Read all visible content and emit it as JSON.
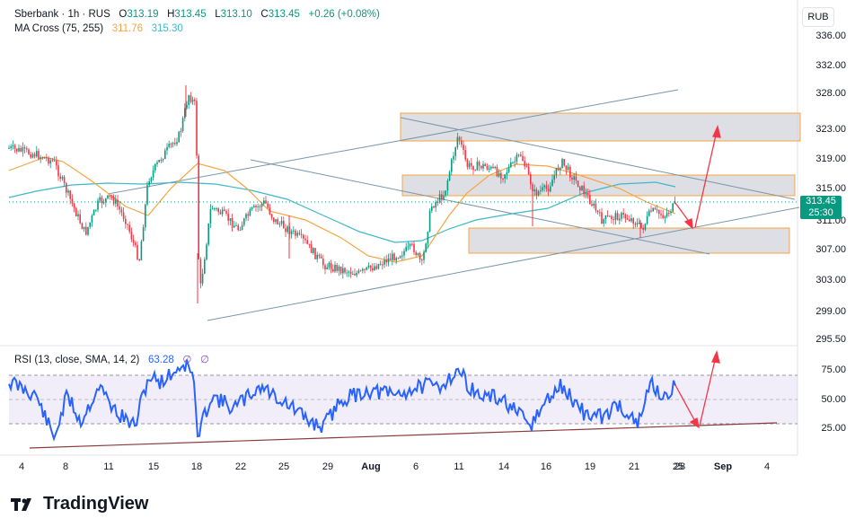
{
  "header": {
    "symbol": "Sberbank · 1h · RUS",
    "open_label": "O",
    "open": "313.19",
    "high_label": "H",
    "high": "313.45",
    "low_label": "L",
    "low": "313.10",
    "close_label": "C",
    "close": "313.45",
    "change": "+0.26 (+0.08%)",
    "ma_label": "MA Cross (75, 255)",
    "ma_fast": "311.76",
    "ma_slow": "315.30",
    "rsi_label": "RSI (13, close, SMA, 14, 2)",
    "rsi_value": "63.28",
    "rsi_ma_value": "∅",
    "rsi_extra": "∅"
  },
  "currency": "RUB",
  "price_tag": {
    "price": "313.45",
    "countdown": "25:30"
  },
  "y_axis_price": [
    "336.00",
    "332.00",
    "328.00",
    "323.00",
    "319.00",
    "315.00",
    "311.00",
    "307.00",
    "303.00",
    "299.00",
    "295.50"
  ],
  "y_axis_rsi": [
    "75.00",
    "50.00",
    "25.00"
  ],
  "x_axis": [
    {
      "label": "4",
      "bold": false
    },
    {
      "label": "8",
      "bold": false
    },
    {
      "label": "11",
      "bold": false
    },
    {
      "label": "15",
      "bold": false
    },
    {
      "label": "18",
      "bold": false
    },
    {
      "label": "22",
      "bold": false
    },
    {
      "label": "25",
      "bold": false
    },
    {
      "label": "29",
      "bold": false
    },
    {
      "label": "Aug",
      "bold": true
    },
    {
      "label": "6",
      "bold": false
    },
    {
      "label": "11",
      "bold": false
    },
    {
      "label": "14",
      "bold": false
    },
    {
      "label": "16",
      "bold": false
    },
    {
      "label": "19",
      "bold": false
    },
    {
      "label": "21",
      "bold": false
    },
    {
      "label": "25",
      "bold": false
    },
    {
      "label": "28",
      "bold": false
    },
    {
      "label": "Sep",
      "bold": true
    },
    {
      "label": "4",
      "bold": false
    }
  ],
  "brand": "TradingView",
  "colors": {
    "up": "#089981",
    "down": "#f23645",
    "ma_fast": "#f7a440",
    "ma_slow": "#3fb8c8",
    "rsi": "#2962ff",
    "zone_fill": "#d1d4dc",
    "zone_border": "#f7a440",
    "trend": "#7896a8",
    "arrow": "#f23645",
    "rsi_band": "#7e57c2"
  }
}
